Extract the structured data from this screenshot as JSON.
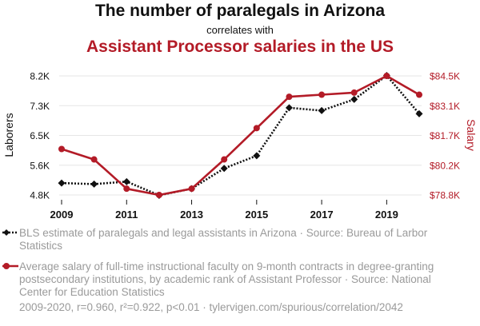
{
  "titles": {
    "main": "The number of paralegals in Arizona",
    "connector": "correlates with",
    "second": "Assistant Processor salaries in the US"
  },
  "legend": {
    "series1": "BLS estimate of paralegals and legal assistants in Arizona · Source: Bureau of Larbor Statistics",
    "series2": "Average salary of full-time instructional faculty on 9-month contracts in degree-granting postsecondary institutions, by academic rank of Assistant Professor · Source: National Center for Education Statistics"
  },
  "footer": "2009-2020, r=0.960, r²=0.922, p<0.01 · tylervigen.com/spurious/correlation/2042",
  "colors": {
    "series1": "#111111",
    "series2": "#b31b27",
    "grid": "#e6e6e6",
    "legendText": "#9a9a9a"
  },
  "chart_data": {
    "type": "line",
    "x": [
      2009,
      2010,
      2011,
      2012,
      2013,
      2014,
      2015,
      2016,
      2017,
      2018,
      2019,
      2020
    ],
    "xticks": [
      2009,
      2011,
      2013,
      2015,
      2017,
      2019
    ],
    "xtick_labels": [
      "2009",
      "2011",
      "2013",
      "2015",
      "2017",
      "2019"
    ],
    "xlim": [
      2009,
      2020
    ],
    "left_axis": {
      "label": "Laborers",
      "ylim": [
        4800,
        8200
      ],
      "ticks": [
        4800,
        5650,
        6500,
        7350,
        8200
      ],
      "tick_labels": [
        "4.8K",
        "5.6K",
        "6.5K",
        "7.3K",
        "8.2K"
      ]
    },
    "right_axis": {
      "label": "Salary",
      "ylim": [
        78800,
        84500
      ],
      "ticks": [
        78800,
        80225,
        81650,
        83075,
        84500
      ],
      "tick_labels": [
        "$78.8K",
        "$80.2K",
        "$81.7K",
        "$83.1K",
        "$84.5K"
      ]
    },
    "series": [
      {
        "name": "BLS estimate of paralegals and legal assistants in Arizona",
        "axis": "left",
        "style": "dotted",
        "marker": "diamond",
        "values": [
          5140,
          5110,
          5180,
          4790,
          4980,
          5560,
          5920,
          7290,
          7210,
          7530,
          8210,
          7120
        ]
      },
      {
        "name": "Average salary of full-time instructional faculty (Assistant Professor)",
        "axis": "right",
        "style": "solid",
        "marker": "circle",
        "values": [
          81000,
          80500,
          79100,
          78800,
          79100,
          80500,
          82000,
          83500,
          83600,
          83700,
          84500,
          83600
        ]
      }
    ]
  }
}
